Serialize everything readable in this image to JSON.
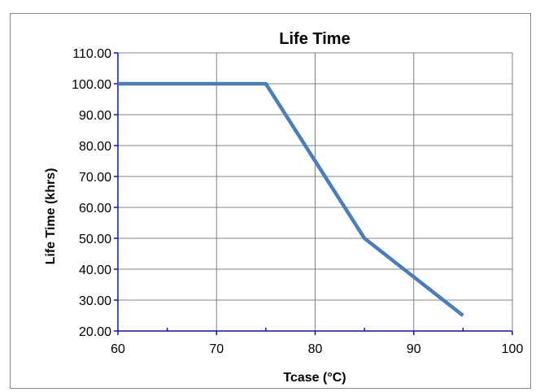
{
  "chart_data": {
    "type": "line",
    "title": "Life Time",
    "xlabel": "Tcase (°C)",
    "ylabel": "Life Time (khrs)",
    "xlim": [
      60,
      100
    ],
    "ylim": [
      20,
      110
    ],
    "x_ticks": [
      60,
      70,
      80,
      90,
      100
    ],
    "y_ticks": [
      "20.00",
      "30.00",
      "40.00",
      "50.00",
      "60.00",
      "70.00",
      "80.00",
      "90.00",
      "100.00",
      "110.00"
    ],
    "grid": true,
    "legend": "none",
    "series": [
      {
        "color": "#4a7ebb",
        "points": [
          {
            "x": 60,
            "y": 100
          },
          {
            "x": 75,
            "y": 100
          },
          {
            "x": 80,
            "y": 75
          },
          {
            "x": 85,
            "y": 50
          },
          {
            "x": 90,
            "y": 37.5
          },
          {
            "x": 95,
            "y": 25
          }
        ]
      }
    ]
  }
}
